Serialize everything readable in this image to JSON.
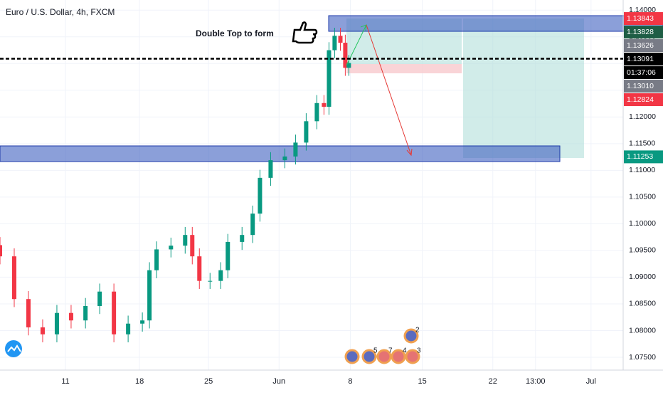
{
  "chart_data": {
    "type": "candlestick",
    "title": "Euro / U.S. Dollar, 4h, FXCM",
    "annotation": "Double Top to form",
    "x": [
      -4.42,
      -3.46,
      -2.5,
      -1.54,
      -0.58,
      0.38,
      1.35,
      2.31,
      3.27,
      4.23,
      5.19,
      5.67,
      6.15,
      7.12,
      8.08,
      8.56,
      9.04,
      9.76,
      10.48,
      10.96,
      11.92,
      12.64,
      13.13,
      13.85,
      14.81,
      15.53,
      16.25,
      16.97,
      17.45,
      17.79,
      18.17,
      18.56,
      18.89,
      19.13
    ],
    "open": [
      1.096,
      1.0939,
      1.0859,
      1.0806,
      1.0793,
      1.0833,
      1.0819,
      1.0846,
      1.0873,
      1.0793,
      1.0813,
      1.0819,
      1.0913,
      1.0952,
      1.0959,
      1.0979,
      1.0939,
      1.0893,
      1.0893,
      1.0913,
      1.0966,
      1.0979,
      1.1019,
      1.1086,
      1.1119,
      1.1126,
      1.1152,
      1.1192,
      1.1226,
      1.1219,
      1.1325,
      1.1352,
      1.1339,
      1.1292
    ],
    "high": [
      1.0975,
      1.0954,
      1.0874,
      1.0821,
      1.0848,
      1.0848,
      1.0861,
      1.0888,
      1.0888,
      1.0828,
      1.0834,
      1.0928,
      1.0967,
      1.0974,
      1.0994,
      1.0994,
      1.0954,
      1.0908,
      1.0928,
      1.0981,
      1.0994,
      1.1034,
      1.1101,
      1.1134,
      1.1141,
      1.1167,
      1.1207,
      1.1241,
      1.1241,
      1.134,
      1.1367,
      1.1367,
      1.1354,
      1.1316
    ],
    "low": [
      1.0924,
      1.0844,
      1.0791,
      1.0778,
      1.0778,
      1.0804,
      1.0804,
      1.0831,
      1.0778,
      1.0778,
      1.0798,
      1.0804,
      1.0898,
      1.0937,
      1.0944,
      1.0924,
      1.0878,
      1.0878,
      1.0878,
      1.0898,
      1.0951,
      1.0964,
      1.1004,
      1.1071,
      1.1104,
      1.1111,
      1.1137,
      1.1177,
      1.1204,
      1.1204,
      1.131,
      1.1324,
      1.1277,
      1.1277
    ],
    "close": [
      1.0939,
      1.0859,
      1.0806,
      1.0793,
      1.0833,
      1.0819,
      1.0846,
      1.0873,
      1.0793,
      1.0813,
      1.0819,
      1.0913,
      1.0952,
      1.0959,
      1.0979,
      1.0939,
      1.0893,
      1.0893,
      1.0913,
      1.0966,
      1.0979,
      1.1019,
      1.1086,
      1.1119,
      1.1126,
      1.1152,
      1.1192,
      1.1226,
      1.1219,
      1.1325,
      1.1352,
      1.1339,
      1.1292,
      1.1301
    ],
    "up_color": "#089981",
    "down_color": "#f23645",
    "xlim": [
      -4.42,
      37.65
    ],
    "xticks": [
      {
        "value": 0,
        "label": "11"
      },
      {
        "value": 5,
        "label": "18"
      },
      {
        "value": 9.66,
        "label": "25"
      },
      {
        "value": 14.42,
        "label": "Jun"
      },
      {
        "value": 19.23,
        "label": "8"
      },
      {
        "value": 24.09,
        "label": "15"
      },
      {
        "value": 28.85,
        "label": "22"
      },
      {
        "value": 31.73,
        "label": "13:00"
      },
      {
        "value": 35.48,
        "label": "Jul"
      }
    ],
    "ylim": [
      1.0726,
      1.1419
    ],
    "yticks": [
      {
        "value": 1.075,
        "label": "1.07500"
      },
      {
        "value": 1.08,
        "label": "1.08000"
      },
      {
        "value": 1.085,
        "label": "1.08500"
      },
      {
        "value": 1.09,
        "label": "1.09000"
      },
      {
        "value": 1.095,
        "label": "1.09500"
      },
      {
        "value": 1.1,
        "label": "1.10000"
      },
      {
        "value": 1.105,
        "label": "1.10500"
      },
      {
        "value": 1.11,
        "label": "1.11000"
      },
      {
        "value": 1.115,
        "label": "1.11500"
      },
      {
        "value": 1.12,
        "label": "1.12000"
      },
      {
        "value": 1.125,
        "label": "1.12500"
      },
      {
        "value": 1.13,
        "label": "1.13000"
      },
      {
        "value": 1.135,
        "label": "1.13500"
      },
      {
        "value": 1.14,
        "label": "1.14000"
      }
    ],
    "grid": true,
    "price_labels": [
      {
        "value": 1.13843,
        "label": "1.13843",
        "color": "#f23645"
      },
      {
        "value": 1.13828,
        "label": "1.13828",
        "color": "#1e5e45"
      },
      {
        "value": 1.13626,
        "label": "1.13626",
        "color": "#787b86"
      },
      {
        "value": 1.13091,
        "label": "1.13091",
        "color": "#000000"
      },
      {
        "value": 1.1301,
        "label": "1.13010",
        "color": "#787b86"
      },
      {
        "value": 1.12824,
        "label": "1.12824",
        "color": "#f23645"
      },
      {
        "value": 1.11253,
        "label": "1.11253",
        "color": "#089981"
      }
    ],
    "countdown": "01:37:06",
    "events": [
      "5",
      "7",
      "4",
      "3",
      "2"
    ]
  }
}
